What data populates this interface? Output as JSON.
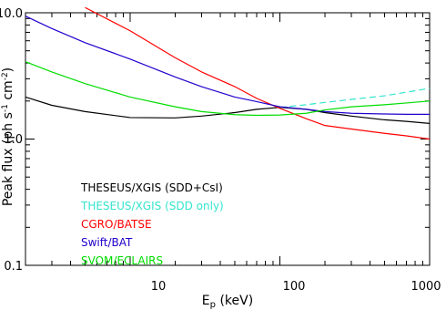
{
  "chart_data": {
    "type": "line",
    "title": "",
    "xlabel": "E",
    "xlabel_sub": "p",
    "xlabel_unit": " (keV)",
    "ylabel": "Peak flux (ph s",
    "ylabel_exp1": "-1",
    "ylabel_mid": " cm",
    "ylabel_exp2": "-2",
    "ylabel_end": ")",
    "x_scale": "log",
    "y_scale": "log",
    "xlim": [
      2,
      1000
    ],
    "ylim": [
      0.1,
      10
    ],
    "x_ticks": [
      {
        "value": 10,
        "label": "10"
      },
      {
        "value": 100,
        "label": "100"
      },
      {
        "value": 1000,
        "label": "1000"
      }
    ],
    "y_ticks": [
      {
        "value": 0.1,
        "label": "0.1"
      },
      {
        "value": 1,
        "label": "1.0"
      },
      {
        "value": 10,
        "label": "10.0"
      }
    ],
    "grid": false,
    "legend_position": "bottom-left",
    "series": [
      {
        "name": "THESEUS/XGIS (SDD+CsI)",
        "color": "#000000",
        "dash": false,
        "points": [
          [
            2,
            2.15
          ],
          [
            3,
            1.85
          ],
          [
            5,
            1.65
          ],
          [
            10,
            1.48
          ],
          [
            20,
            1.47
          ],
          [
            30,
            1.52
          ],
          [
            50,
            1.62
          ],
          [
            70,
            1.72
          ],
          [
            100,
            1.78
          ],
          [
            150,
            1.72
          ],
          [
            200,
            1.62
          ],
          [
            300,
            1.52
          ],
          [
            500,
            1.42
          ],
          [
            700,
            1.38
          ],
          [
            1000,
            1.33
          ]
        ]
      },
      {
        "name": "THESEUS/XGIS (SDD only)",
        "color": "#33e5cc",
        "dash": true,
        "points": [
          [
            100,
            1.78
          ],
          [
            150,
            1.87
          ],
          [
            200,
            1.95
          ],
          [
            300,
            2.06
          ],
          [
            500,
            2.2
          ],
          [
            700,
            2.35
          ],
          [
            1000,
            2.52
          ]
        ]
      },
      {
        "name": "CGRO/BATSE",
        "color": "#ff0000",
        "dash": false,
        "points": [
          [
            5,
            11.0
          ],
          [
            10,
            7.2
          ],
          [
            20,
            4.4
          ],
          [
            30,
            3.4
          ],
          [
            50,
            2.6
          ],
          [
            70,
            2.1
          ],
          [
            100,
            1.75
          ],
          [
            150,
            1.45
          ],
          [
            200,
            1.28
          ],
          [
            300,
            1.2
          ],
          [
            500,
            1.11
          ],
          [
            700,
            1.06
          ],
          [
            1000,
            1.0
          ]
        ]
      },
      {
        "name": "Swift/BAT",
        "color": "#2200cc",
        "dash": false,
        "points": [
          [
            2,
            9.4
          ],
          [
            3,
            7.5
          ],
          [
            5,
            5.8
          ],
          [
            10,
            4.3
          ],
          [
            20,
            3.1
          ],
          [
            30,
            2.6
          ],
          [
            50,
            2.15
          ],
          [
            70,
            1.98
          ],
          [
            100,
            1.8
          ],
          [
            150,
            1.72
          ],
          [
            200,
            1.65
          ],
          [
            300,
            1.6
          ],
          [
            500,
            1.58
          ],
          [
            700,
            1.57
          ],
          [
            1000,
            1.57
          ]
        ]
      },
      {
        "name": "SVOM/ECLAIRS",
        "color": "#00dd00",
        "dash": false,
        "points": [
          [
            2,
            4.1
          ],
          [
            3,
            3.4
          ],
          [
            5,
            2.75
          ],
          [
            10,
            2.15
          ],
          [
            20,
            1.8
          ],
          [
            30,
            1.65
          ],
          [
            50,
            1.56
          ],
          [
            70,
            1.54
          ],
          [
            100,
            1.55
          ],
          [
            150,
            1.6
          ],
          [
            200,
            1.7
          ],
          [
            300,
            1.8
          ],
          [
            500,
            1.87
          ],
          [
            700,
            1.93
          ],
          [
            1000,
            2.0
          ]
        ]
      }
    ]
  }
}
